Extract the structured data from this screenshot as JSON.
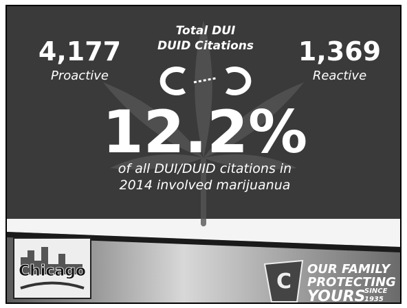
{
  "slide": {
    "heading": [
      "Total DUI",
      "DUID Citations"
    ],
    "proactive": {
      "number": "4,177",
      "label": "Proactive"
    },
    "reactive": {
      "number": "1,369",
      "label": "Reactive"
    },
    "headline": "12.2%",
    "caption": [
      "of all DUI/DUID citations in",
      "2014 involved marijuanua"
    ],
    "left_logo": "Chicago",
    "right_logo": {
      "lines": [
        "OUR FAMILY",
        "PROTECTING",
        "YOURS"
      ],
      "since": [
        "SINCE",
        "1935"
      ]
    }
  }
}
